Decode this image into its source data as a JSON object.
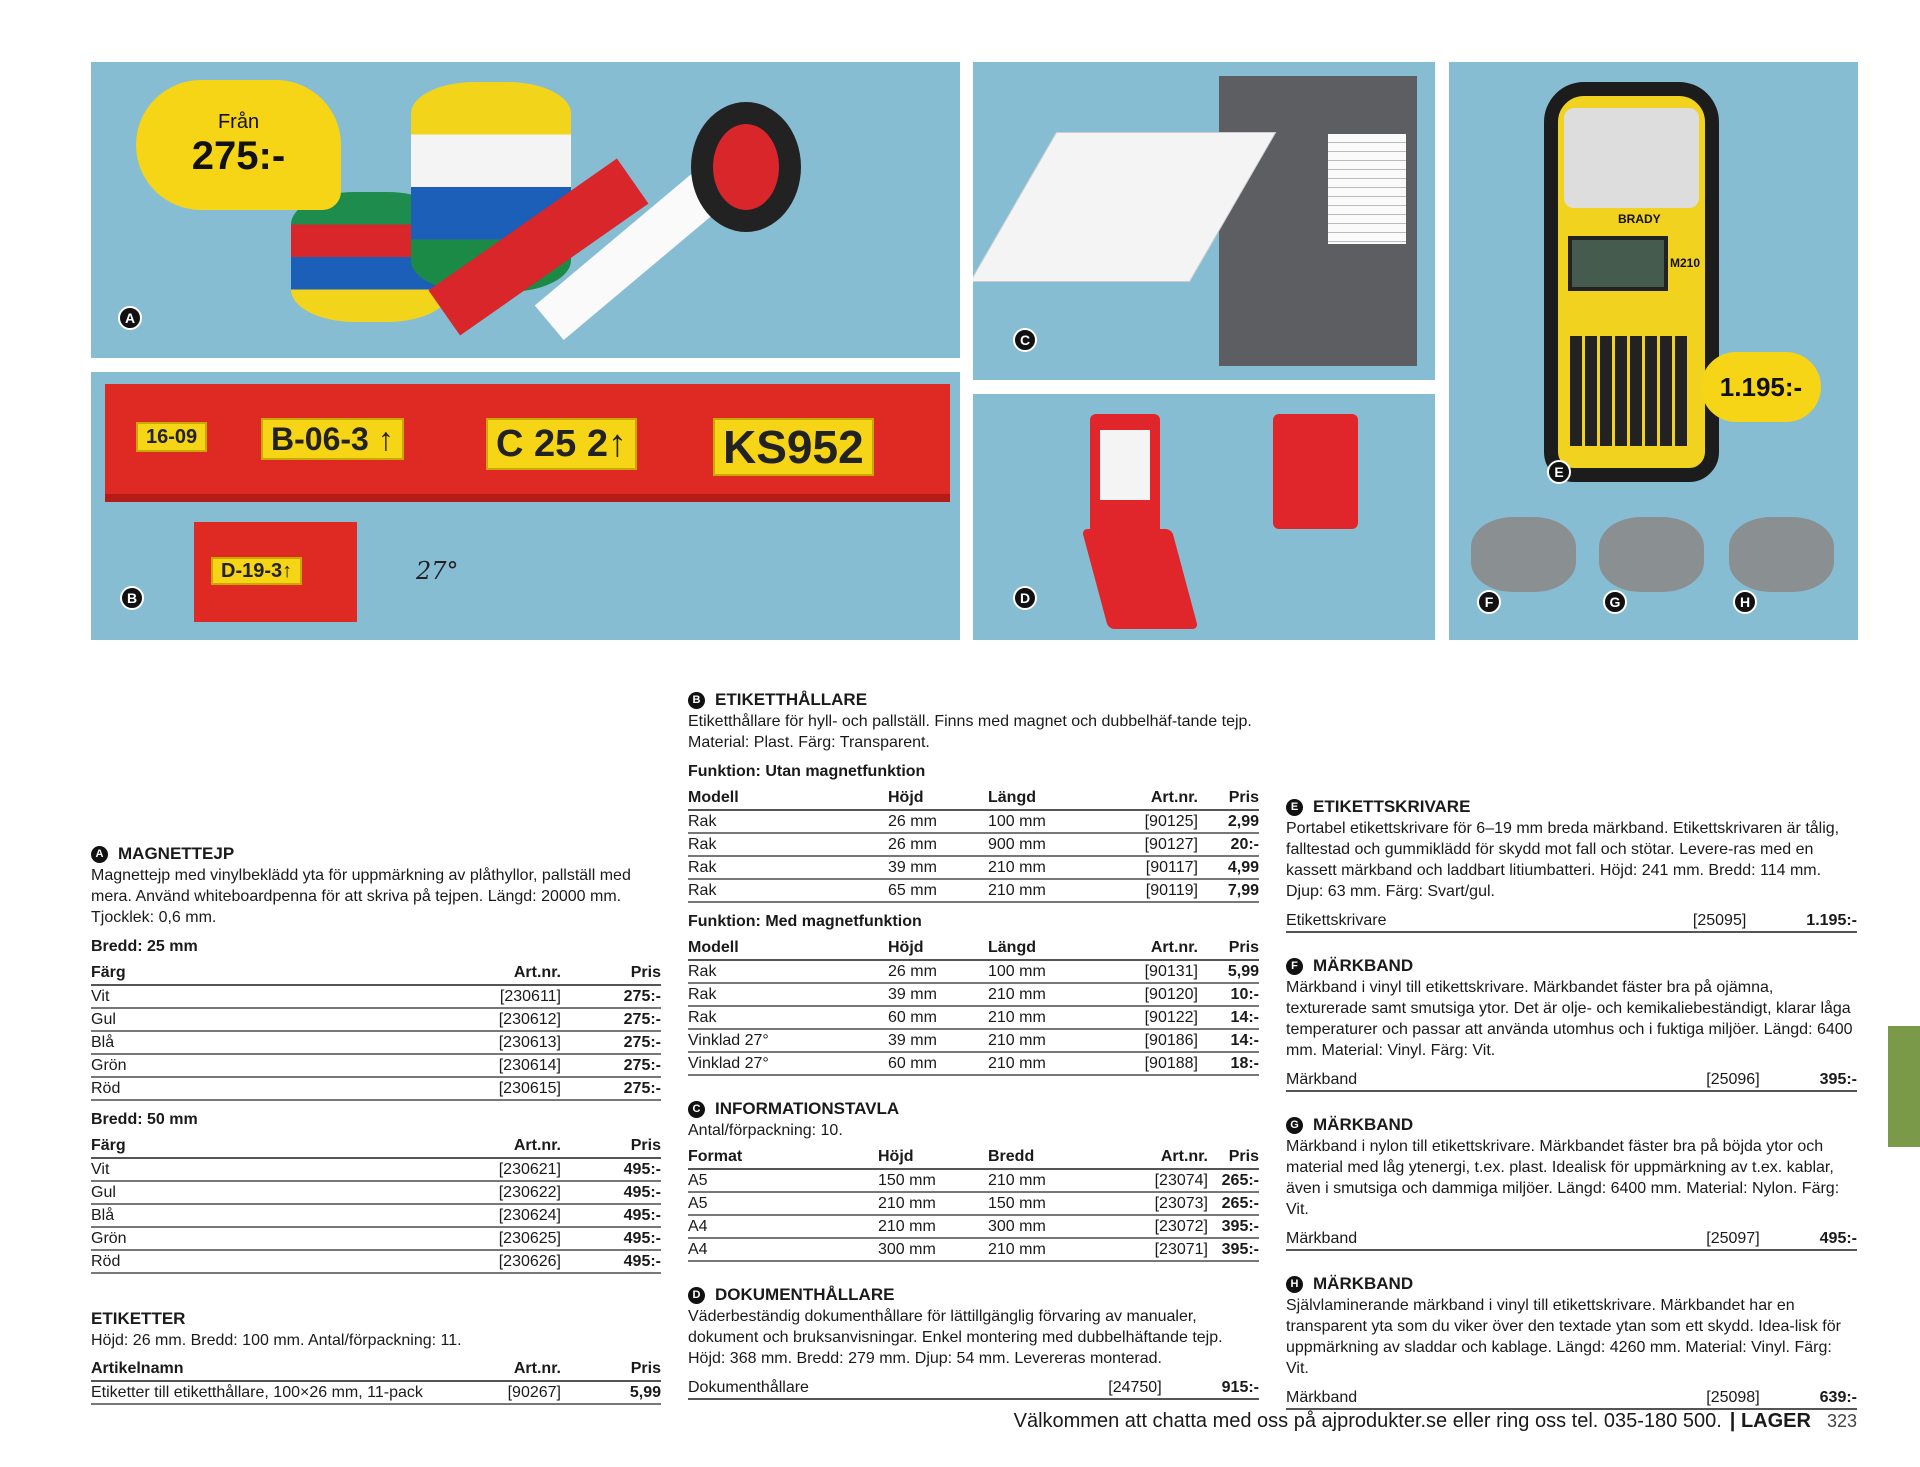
{
  "photos": {
    "a": {
      "badge": "A",
      "bubble_from": "Från",
      "bubble_price": "275:-"
    },
    "b": {
      "badge": "B",
      "labels": [
        "16-09",
        "B-06-3 ↑",
        "C 25 2↑",
        "KS952"
      ],
      "small_label": "D-19-3↑",
      "angle": "27°"
    },
    "c": {
      "badge": "C"
    },
    "d": {
      "badge": "D"
    },
    "e": {
      "badge": "E",
      "price": "1.195:-",
      "brand": "BRADY",
      "model": "M210"
    },
    "f": {
      "badge": "F"
    },
    "g": {
      "badge": "G"
    },
    "h": {
      "badge": "H"
    }
  },
  "magnettejp": {
    "letter": "A",
    "title": "MAGNETTEJP",
    "desc": "Magnettejp med vinylbeklädd yta för uppmärkning av plåthyllor, pallställ med mera. Använd whiteboardpenna för att skriva på tejpen. Längd: 20000 mm. Tjocklek: 0,6 mm.",
    "groups": [
      {
        "title": "Bredd: 25 mm",
        "headers": [
          "Färg",
          "Art.nr.",
          "Pris"
        ],
        "rows": [
          [
            "Vit",
            "[230611]",
            "275:-"
          ],
          [
            "Gul",
            "[230612]",
            "275:-"
          ],
          [
            "Blå",
            "[230613]",
            "275:-"
          ],
          [
            "Grön",
            "[230614]",
            "275:-"
          ],
          [
            "Röd",
            "[230615]",
            "275:-"
          ]
        ]
      },
      {
        "title": "Bredd: 50 mm",
        "headers": [
          "Färg",
          "Art.nr.",
          "Pris"
        ],
        "rows": [
          [
            "Vit",
            "[230621]",
            "495:-"
          ],
          [
            "Gul",
            "[230622]",
            "495:-"
          ],
          [
            "Blå",
            "[230624]",
            "495:-"
          ],
          [
            "Grön",
            "[230625]",
            "495:-"
          ],
          [
            "Röd",
            "[230626]",
            "495:-"
          ]
        ]
      }
    ]
  },
  "etiketter": {
    "title": "ETIKETTER",
    "desc": "Höjd: 26 mm. Bredd: 100 mm. Antal/förpackning: 11.",
    "headers": [
      "Artikelnamn",
      "Art.nr.",
      "Pris"
    ],
    "rows": [
      [
        "Etiketter till etiketthållare, 100×26 mm, 11-pack",
        "[90267]",
        "5,99"
      ]
    ]
  },
  "etiketthallare": {
    "letter": "B",
    "title": "ETIKETTHÅLLARE",
    "desc": "Etiketthållare för hyll- och pallställ. Finns med magnet och dubbelhäf-tande tejp. Material: Plast. Färg: Transparent.",
    "groups": [
      {
        "title": "Funktion: Utan magnetfunktion",
        "headers": [
          "Modell",
          "Höjd",
          "Längd",
          "Art.nr.",
          "Pris"
        ],
        "rows": [
          [
            "Rak",
            "26 mm",
            "100 mm",
            "[90125]",
            "2,99"
          ],
          [
            "Rak",
            "26 mm",
            "900 mm",
            "[90127]",
            "20:-"
          ],
          [
            "Rak",
            "39 mm",
            "210 mm",
            "[90117]",
            "4,99"
          ],
          [
            "Rak",
            "65 mm",
            "210 mm",
            "[90119]",
            "7,99"
          ]
        ]
      },
      {
        "title": "Funktion: Med magnetfunktion",
        "headers": [
          "Modell",
          "Höjd",
          "Längd",
          "Art.nr.",
          "Pris"
        ],
        "rows": [
          [
            "Rak",
            "26 mm",
            "100 mm",
            "[90131]",
            "5,99"
          ],
          [
            "Rak",
            "39 mm",
            "210 mm",
            "[90120]",
            "10:-"
          ],
          [
            "Rak",
            "60 mm",
            "210 mm",
            "[90122]",
            "14:-"
          ],
          [
            "Vinklad 27°",
            "39 mm",
            "210 mm",
            "[90186]",
            "14:-"
          ],
          [
            "Vinklad 27°",
            "60 mm",
            "210 mm",
            "[90188]",
            "18:-"
          ]
        ]
      }
    ]
  },
  "informationstavla": {
    "letter": "C",
    "title": "INFORMATIONSTAVLA",
    "desc": "Antal/förpackning: 10.",
    "headers": [
      "Format",
      "Höjd",
      "Bredd",
      "Art.nr.",
      "Pris"
    ],
    "rows": [
      [
        "A5",
        "150 mm",
        "210 mm",
        "[23074]",
        "265:-"
      ],
      [
        "A5",
        "210 mm",
        "150 mm",
        "[23073]",
        "265:-"
      ],
      [
        "A4",
        "210 mm",
        "300 mm",
        "[23072]",
        "395:-"
      ],
      [
        "A4",
        "300 mm",
        "210 mm",
        "[23071]",
        "395:-"
      ]
    ]
  },
  "dokumenthallare": {
    "letter": "D",
    "title": "DOKUMENTHÅLLARE",
    "desc": "Väderbeständig dokumenthållare för lättillgänglig förvaring av manualer, dokument och bruksanvisningar. Enkel montering med dubbelhäftande tejp. Höjd: 368 mm. Bredd: 279 mm. Djup: 54 mm. Levereras monterad.",
    "item": {
      "name": "Dokumenthållare",
      "art": "[24750]",
      "price": "915:-"
    }
  },
  "right": [
    {
      "letter": "E",
      "title": "ETIKETTSKRIVARE",
      "desc": "Portabel etikettskrivare för 6–19 mm breda märkband. Etikettskrivaren är tålig, falltestad och gummiklädd för skydd mot fall och stötar. Levere-ras med en kassett märkband och laddbart litiumbatteri. Höjd: 241 mm. Bredd: 114 mm. Djup: 63 mm. Färg: Svart/gul.",
      "item": {
        "name": "Etikettskrivare",
        "art": "[25095]",
        "price": "1.195:-"
      }
    },
    {
      "letter": "F",
      "title": "MÄRKBAND",
      "desc": "Märkband i vinyl till etikettskrivare. Märkbandet fäster bra på ojämna, texturerade samt smutsiga ytor. Det är olje- och kemikaliebeständigt, klarar låga temperaturer och passar att använda utomhus och i fuktiga miljöer. Längd: 6400 mm. Material: Vinyl. Färg: Vit.",
      "item": {
        "name": "Märkband",
        "art": "[25096]",
        "price": "395:-"
      }
    },
    {
      "letter": "G",
      "title": "MÄRKBAND",
      "desc": "Märkband i nylon till etikettskrivare. Märkbandet fäster bra på böjda ytor och material med låg ytenergi, t.ex. plast. Idealisk för uppmärkning av t.ex. kablar, även i smutsiga och dammiga miljöer. Längd: 6400 mm. Material: Nylon. Färg: Vit.",
      "item": {
        "name": "Märkband",
        "art": "[25097]",
        "price": "495:-"
      }
    },
    {
      "letter": "H",
      "title": "MÄRKBAND",
      "desc": "Självlaminerande märkband i vinyl till etikettskrivare. Märkbandet har en transparent yta som du viker över den textade ytan som ett skydd. Idea-lisk för uppmärkning av sladdar och kablage. Längd: 4260 mm. Material: Vinyl. Färg: Vit.",
      "item": {
        "name": "Märkband",
        "art": "[25098]",
        "price": "639:-"
      }
    }
  ],
  "footer": {
    "text": "Välkommen att chatta med oss på ajprodukter.se eller ring oss tel. 035-180 500.",
    "section": "| LAGER",
    "page": "323"
  },
  "colors": {
    "photo_bg": "#86bdd3",
    "price_bubble": "#f6d416",
    "side_tab": "#7a9a4a"
  }
}
